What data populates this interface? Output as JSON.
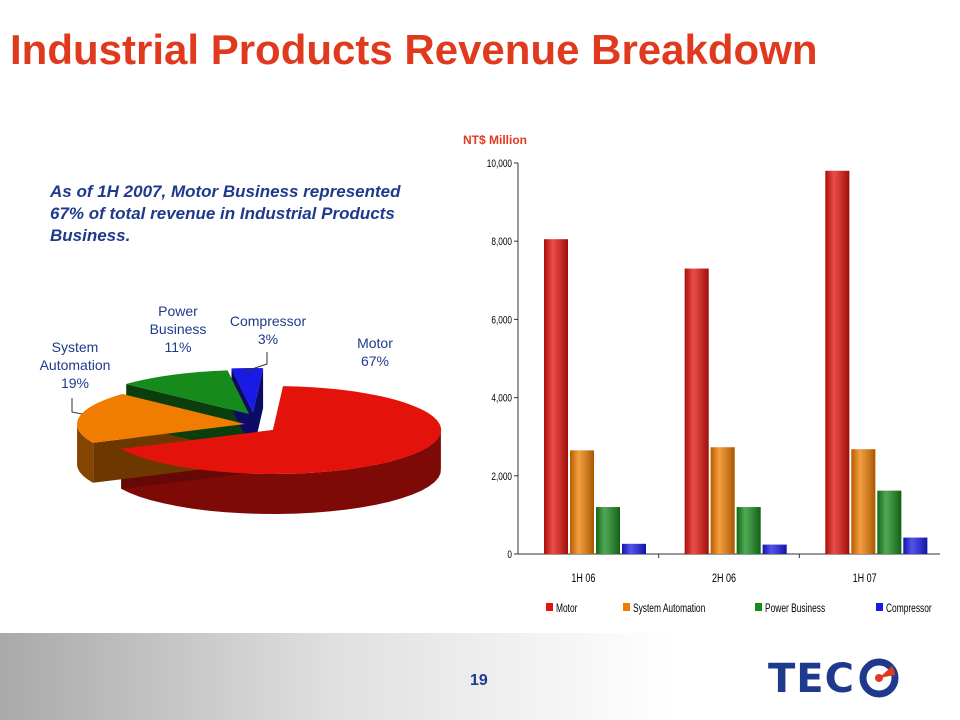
{
  "slide": {
    "title": "Industrial Products Revenue Breakdown",
    "note": "As of 1H 2007, Motor Business represented 67% of total revenue in Industrial Products Business.",
    "page_number": "19",
    "logo_text": "TEC"
  },
  "colors": {
    "title": "#e03a1e",
    "note": "#1f3a8c",
    "motor": "#e3120b",
    "system_automation": "#f07d00",
    "power_business": "#178a1c",
    "compressor": "#1a1ae6"
  },
  "chart_data": [
    {
      "type": "pie",
      "style": "3d-exploded",
      "slices": [
        {
          "name": "Motor",
          "value": 67,
          "label": [
            "Motor",
            "67%"
          ]
        },
        {
          "name": "System Automation",
          "value": 19,
          "label": [
            "System",
            "Automation",
            "19%"
          ]
        },
        {
          "name": "Power Business",
          "value": 11,
          "label": [
            "Power",
            "Business",
            "11%"
          ]
        },
        {
          "name": "Compressor",
          "value": 3,
          "label": [
            "Compressor",
            "3%"
          ]
        }
      ]
    },
    {
      "type": "bar",
      "ylabel": "NT$ Million",
      "ylim": [
        0,
        10000
      ],
      "yticks": [
        0,
        2000,
        4000,
        6000,
        8000,
        10000
      ],
      "ytick_labels": [
        "0",
        "2,000",
        "4,000",
        "6,000",
        "8,000",
        "10,000"
      ],
      "categories": [
        "1H 06",
        "2H 06",
        "1H 07"
      ],
      "series": [
        {
          "name": "Motor",
          "values": [
            8050,
            7300,
            9800
          ]
        },
        {
          "name": "System Automation",
          "values": [
            2650,
            2730,
            2680
          ]
        },
        {
          "name": "Power Business",
          "values": [
            1200,
            1200,
            1620
          ]
        },
        {
          "name": "Compressor",
          "values": [
            260,
            240,
            420
          ]
        }
      ],
      "legend_position": "bottom",
      "grid": false
    }
  ]
}
